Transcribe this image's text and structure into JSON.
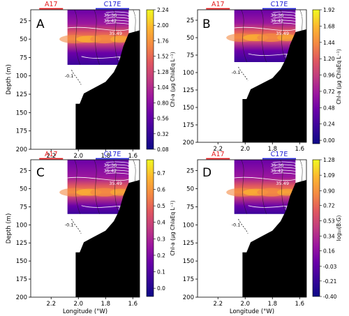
{
  "figure": {
    "panels": [
      {
        "letter": "A",
        "top_labels": [
          {
            "text": "A17",
            "color": "#e41a1c"
          },
          {
            "text": "C17E",
            "color": "#1f1fd6"
          }
        ],
        "xlabel": "",
        "ylabel": "Depth (m)",
        "colorbar": {
          "label": "Chl-a (µg ChlaEq L⁻¹)",
          "ticks": [
            "2.24",
            "2.00",
            "1.76",
            "1.52",
            "1.28",
            "1.04",
            "0.80",
            "0.56",
            "0.32",
            "0.08"
          ],
          "min": 0.08,
          "max": 2.24
        }
      },
      {
        "letter": "B",
        "top_labels": [
          {
            "text": "A17",
            "color": "#e41a1c"
          },
          {
            "text": "C17E",
            "color": "#1f1fd6"
          }
        ],
        "xlabel": "",
        "ylabel": "",
        "colorbar": {
          "label": "Chl-a (µg ChlaEq L⁻¹)",
          "ticks": [
            "1.92",
            "1.68",
            "1.44",
            "1.20",
            "0.96",
            "0.72",
            "0.48",
            "0.24",
            "0.00"
          ],
          "min": -0.05,
          "max": 1.92
        }
      },
      {
        "letter": "C",
        "top_labels": [
          {
            "text": "A17",
            "color": "#e41a1c"
          },
          {
            "text": "C17E",
            "color": "#1f1fd6"
          }
        ],
        "xlabel": "Longitude (°W)",
        "ylabel": "Depth (m)",
        "colorbar": {
          "label": "Chl-a (µg ChlaEq L⁻¹)",
          "ticks": [
            "0.7",
            "0.6",
            "0.5",
            "0.4",
            "0.3",
            "0.2",
            "0.1",
            "0.0"
          ],
          "min": -0.05,
          "max": 0.78
        }
      },
      {
        "letter": "D",
        "top_labels": [
          {
            "text": "A17",
            "color": "#e41a1c"
          },
          {
            "text": "C17E",
            "color": "#1f1fd6"
          }
        ],
        "xlabel": "Longitude (°W)",
        "ylabel": "",
        "colorbar": {
          "label": "log₁₀(B:G)",
          "ticks": [
            "1.28",
            "1.09",
            "0.90",
            "0.72",
            "0.53",
            "0.34",
            "0.16",
            "-0.03",
            "-0.21",
            "-0.40"
          ],
          "min": -0.4,
          "max": 1.28
        }
      }
    ],
    "contour_labels": [
      "35.36",
      "35.30",
      "35.42",
      "35.49",
      "35.55",
      "-0.1"
    ],
    "colors": {
      "colormap": [
        "#0d0887",
        "#3a049a",
        "#6a00a8",
        "#9c179e",
        "#c03b80",
        "#e0585f",
        "#f48a42",
        "#fcb72f",
        "#f0f921"
      ],
      "bathymetry": "#000000"
    }
  },
  "chart_data": [
    {
      "type": "heatmap",
      "panel": "A",
      "variable": "Chl-a (µg ChlaEq L⁻¹)",
      "xlabel": "Longitude (°W)",
      "ylabel": "Depth (m)",
      "xlim": [
        2.35,
        1.55
      ],
      "ylim": [
        200,
        10
      ],
      "x_ticks": [
        "2.2",
        "2.0",
        "1.8",
        "1.6"
      ],
      "y_ticks": [
        "25",
        "50",
        "75",
        "100",
        "125",
        "150",
        "175",
        "200"
      ],
      "data_extent": {
        "x": [
          2.08,
          1.63
        ],
        "depth": [
          10,
          85
        ]
      },
      "colorbar_range": [
        0.08,
        2.24
      ],
      "max_layer_depth_m": 50,
      "stations": [
        "A17",
        "C17E"
      ],
      "isohalines": [
        "35.30",
        "35.36",
        "35.42",
        "35.49",
        "35.55"
      ]
    },
    {
      "type": "heatmap",
      "panel": "B",
      "variable": "Chl-a (µg ChlaEq L⁻¹)",
      "xlim": [
        2.35,
        1.55
      ],
      "ylim": [
        200,
        10
      ],
      "x_ticks": [
        "2.2",
        "2.0",
        "1.8",
        "1.6"
      ],
      "y_ticks": [
        "25",
        "50",
        "75",
        "100",
        "125",
        "150",
        "175",
        "200"
      ],
      "data_extent": {
        "x": [
          2.08,
          1.63
        ],
        "depth": [
          10,
          85
        ]
      },
      "colorbar_range": [
        0.0,
        1.92
      ],
      "max_layer_depth_m": 50,
      "stations": [
        "A17",
        "C17E"
      ],
      "isohalines": [
        "35.30",
        "35.36",
        "35.42",
        "35.49",
        "35.55"
      ]
    },
    {
      "type": "heatmap",
      "panel": "C",
      "variable": "Chl-a (µg ChlaEq L⁻¹)",
      "xlabel": "Longitude (°W)",
      "ylabel": "Depth (m)",
      "xlim": [
        2.35,
        1.55
      ],
      "ylim": [
        200,
        10
      ],
      "x_ticks": [
        "2.2",
        "2.0",
        "1.8",
        "1.6"
      ],
      "y_ticks": [
        "25",
        "50",
        "75",
        "100",
        "125",
        "150",
        "175",
        "200"
      ],
      "data_extent": {
        "x": [
          2.08,
          1.63
        ],
        "depth": [
          10,
          85
        ]
      },
      "colorbar_range": [
        0.0,
        0.7
      ],
      "max_layer_depth_m": 55,
      "stations": [
        "A17",
        "C17E"
      ],
      "isohalines": [
        "35.30",
        "35.36",
        "35.42",
        "35.49",
        "35.55"
      ]
    },
    {
      "type": "heatmap",
      "panel": "D",
      "variable": "log₁₀(B:G)",
      "xlabel": "Longitude (°W)",
      "xlim": [
        2.35,
        1.55
      ],
      "ylim": [
        200,
        10
      ],
      "x_ticks": [
        "2.2",
        "2.0",
        "1.8",
        "1.6"
      ],
      "y_ticks": [
        "25",
        "50",
        "75",
        "100",
        "125",
        "150",
        "175",
        "200"
      ],
      "data_extent": {
        "x": [
          2.08,
          1.63
        ],
        "depth": [
          10,
          85
        ]
      },
      "colorbar_range": [
        -0.4,
        1.28
      ],
      "max_layer_depth_m": 55,
      "stations": [
        "A17",
        "C17E"
      ],
      "isohalines": [
        "35.30",
        "35.36",
        "35.42",
        "35.49",
        "35.55"
      ]
    }
  ]
}
